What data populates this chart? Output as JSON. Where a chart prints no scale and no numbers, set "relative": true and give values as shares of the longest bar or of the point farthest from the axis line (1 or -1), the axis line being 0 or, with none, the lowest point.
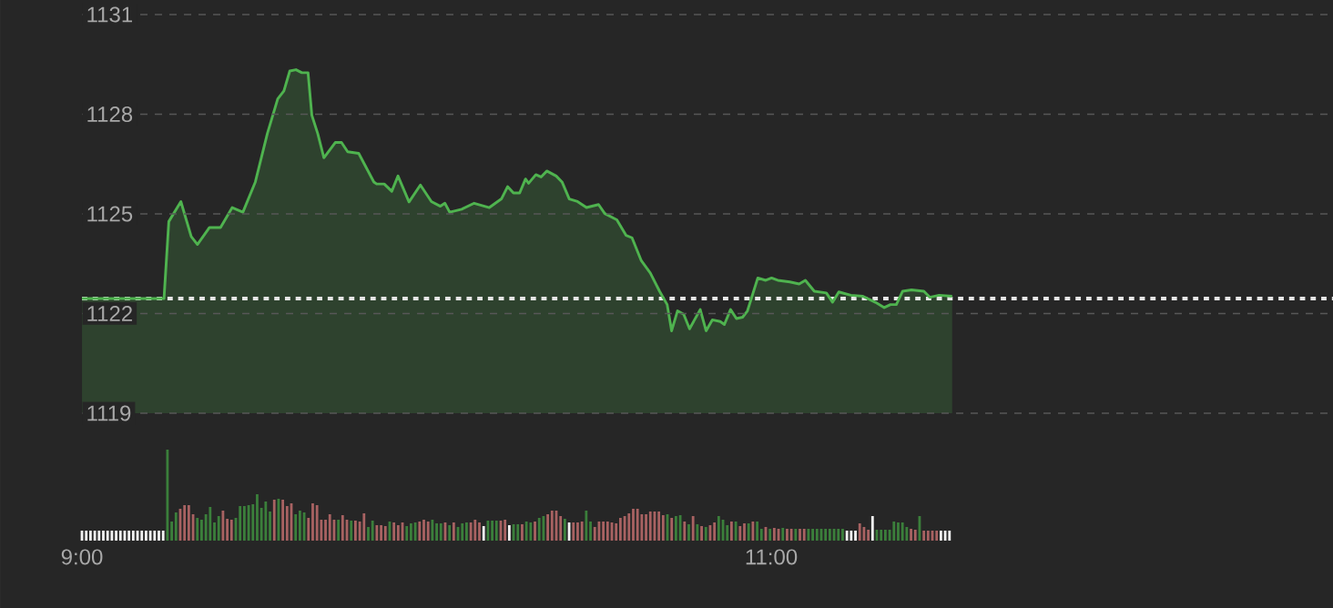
{
  "chart_data": [
    {
      "type": "area",
      "color": "#4fb34f",
      "tick_labels": "y",
      "x": [
        9.0,
        9.238,
        9.252,
        9.287,
        9.317,
        9.335,
        9.37,
        9.402,
        9.436,
        9.467,
        9.503,
        9.538,
        9.568,
        9.586,
        9.603,
        9.621,
        9.638,
        9.656,
        9.667,
        9.684,
        9.702,
        9.735,
        9.753,
        9.771,
        9.803,
        9.847,
        9.855,
        9.877,
        9.899,
        9.917,
        9.949,
        9.982,
        10.014,
        10.04,
        10.053,
        10.067,
        10.102,
        10.138,
        10.182,
        10.217,
        10.235,
        10.252,
        10.27,
        10.287,
        10.296,
        10.317,
        10.332,
        10.349,
        10.376,
        10.393,
        10.414,
        10.438,
        10.464,
        10.499,
        10.517,
        10.552,
        10.579,
        10.596,
        10.623,
        10.649,
        10.676,
        10.698,
        10.711,
        10.728,
        10.746,
        10.763,
        10.794,
        10.811,
        10.829,
        10.852,
        10.864,
        10.882,
        10.899,
        10.917,
        10.931,
        10.961,
        10.984,
        11.001,
        11.019,
        11.054,
        11.081,
        11.099,
        11.125,
        11.16,
        11.178,
        11.196,
        11.231,
        11.266,
        11.302,
        11.328,
        11.346,
        11.363,
        11.381,
        11.407,
        11.443,
        11.46,
        11.487,
        11.525
      ],
      "values": [
        1122.45,
        1122.45,
        1124.77,
        1125.37,
        1124.32,
        1124.08,
        1124.59,
        1124.59,
        1125.19,
        1125.05,
        1125.96,
        1127.42,
        1128.46,
        1128.7,
        1129.3,
        1129.34,
        1129.25,
        1129.25,
        1127.97,
        1127.42,
        1126.69,
        1127.15,
        1127.15,
        1126.87,
        1126.82,
        1125.96,
        1125.9,
        1125.9,
        1125.68,
        1126.14,
        1125.36,
        1125.87,
        1125.37,
        1125.23,
        1125.32,
        1125.05,
        1125.14,
        1125.32,
        1125.19,
        1125.45,
        1125.82,
        1125.63,
        1125.63,
        1126.05,
        1125.92,
        1126.18,
        1126.11,
        1126.29,
        1126.14,
        1125.96,
        1125.45,
        1125.37,
        1125.19,
        1125.28,
        1125.01,
        1124.82,
        1124.35,
        1124.28,
        1123.59,
        1123.22,
        1122.67,
        1122.27,
        1121.48,
        1122.08,
        1121.98,
        1121.54,
        1122.12,
        1121.48,
        1121.81,
        1121.76,
        1121.67,
        1122.12,
        1121.85,
        1121.89,
        1122.08,
        1123.07,
        1123.0,
        1123.07,
        1123.0,
        1122.95,
        1122.89,
        1123.0,
        1122.67,
        1122.62,
        1122.34,
        1122.65,
        1122.55,
        1122.52,
        1122.34,
        1122.18,
        1122.27,
        1122.27,
        1122.67,
        1122.71,
        1122.67,
        1122.49,
        1122.55,
        1122.52
      ],
      "xlim": [
        9,
        12.63
      ],
      "ylim": [
        1119,
        1131
      ],
      "yticks": [
        1119,
        1122,
        1125,
        1128,
        1131
      ],
      "grid": "y",
      "ref_lines": [
        {
          "axis": "y",
          "value": 1122.45,
          "color": "#e6e6e6",
          "line_style": "dotted"
        }
      ]
    },
    {
      "type": "bar",
      "relative": true,
      "tick_labels": "x",
      "xlim": [
        9,
        12.63
      ],
      "xticks": [
        {
          "value": 9,
          "label": "9:00"
        },
        {
          "value": 11,
          "label": "11:00"
        }
      ],
      "x": [
        9.0,
        9.0124,
        9.0248,
        9.0372,
        9.0496,
        9.062,
        9.0744,
        9.0868,
        9.0992,
        9.1116,
        9.124,
        9.1364,
        9.1488,
        9.1612,
        9.1736,
        9.186,
        9.1984,
        9.2108,
        9.2232,
        9.2356,
        9.248,
        9.2604,
        9.2728,
        9.2852,
        9.2976,
        9.31,
        9.3224,
        9.3348,
        9.3472,
        9.3596,
        9.372,
        9.3844,
        9.3968,
        9.4092,
        9.4216,
        9.434,
        9.4464,
        9.4588,
        9.4712,
        9.4836,
        9.496,
        9.5084,
        9.5208,
        9.5332,
        9.5456,
        9.558,
        9.5704,
        9.5828,
        9.5952,
        9.6076,
        9.62,
        9.6324,
        9.6448,
        9.6572,
        9.6696,
        9.682,
        9.6944,
        9.7068,
        9.7192,
        9.7316,
        9.744,
        9.7564,
        9.7688,
        9.7812,
        9.7936,
        9.806,
        9.8184,
        9.8308,
        9.8432,
        9.8556,
        9.868,
        9.8804,
        9.8928,
        9.9052,
        9.9176,
        9.93,
        9.9424,
        9.9548,
        9.9672,
        9.9796,
        9.992,
        10.0044,
        10.0168,
        10.0292,
        10.0416,
        10.054,
        10.0664,
        10.0788,
        10.0912,
        10.1036,
        10.116,
        10.1284,
        10.1408,
        10.1532,
        10.1656,
        10.178,
        10.1904,
        10.2028,
        10.2152,
        10.2276,
        10.24,
        10.2524,
        10.2648,
        10.2772,
        10.2896,
        10.302,
        10.3144,
        10.3268,
        10.3392,
        10.3516,
        10.364,
        10.3764,
        10.3888,
        10.4012,
        10.4136,
        10.426,
        10.4384,
        10.4508,
        10.4632,
        10.4756,
        10.488,
        10.5004,
        10.5128,
        10.5252,
        10.5376,
        10.55,
        10.5624,
        10.5748,
        10.5872,
        10.5996,
        10.612,
        10.6244,
        10.6368,
        10.6492,
        10.6616,
        10.674,
        10.6864,
        10.6988,
        10.7112,
        10.7236,
        10.736,
        10.7484,
        10.7608,
        10.7732,
        10.7856,
        10.798,
        10.8104,
        10.8228,
        10.8352,
        10.8476,
        10.86,
        10.8724,
        10.8848,
        10.8972,
        10.9096,
        10.922,
        10.9344,
        10.9468,
        10.9592,
        10.9716,
        10.984,
        10.9964,
        11.0088,
        11.0212,
        11.0336,
        11.046,
        11.0584,
        11.0708,
        11.0832,
        11.0956,
        11.108,
        11.1204,
        11.1328,
        11.1452,
        11.1576,
        11.17,
        11.1824,
        11.1948,
        11.2072,
        11.2196,
        11.232,
        11.2444,
        11.2568,
        11.2692,
        11.2816,
        11.294,
        11.3064,
        11.3188,
        11.3312,
        11.3436,
        11.356,
        11.3684,
        11.3808,
        11.3932,
        11.4056,
        11.418,
        11.4304,
        11.4428,
        11.4552,
        11.4676,
        11.48,
        11.4924,
        11.5048,
        11.5172
      ],
      "values": [
        0.11,
        0.11,
        0.11,
        0.11,
        0.11,
        0.11,
        0.11,
        0.11,
        0.11,
        0.11,
        0.11,
        0.11,
        0.11,
        0.11,
        0.11,
        0.11,
        0.11,
        0.11,
        0.11,
        0.11,
        1.0,
        0.21,
        0.31,
        0.35,
        0.39,
        0.39,
        0.29,
        0.25,
        0.23,
        0.29,
        0.37,
        0.2,
        0.27,
        0.33,
        0.24,
        0.23,
        0.25,
        0.38,
        0.38,
        0.39,
        0.4,
        0.51,
        0.36,
        0.43,
        0.32,
        0.45,
        0.46,
        0.45,
        0.38,
        0.41,
        0.29,
        0.33,
        0.31,
        0.25,
        0.41,
        0.39,
        0.23,
        0.23,
        0.29,
        0.23,
        0.23,
        0.28,
        0.23,
        0.22,
        0.22,
        0.21,
        0.3,
        0.15,
        0.22,
        0.17,
        0.17,
        0.16,
        0.21,
        0.2,
        0.17,
        0.2,
        0.16,
        0.19,
        0.2,
        0.21,
        0.23,
        0.21,
        0.23,
        0.19,
        0.19,
        0.2,
        0.17,
        0.2,
        0.15,
        0.19,
        0.2,
        0.2,
        0.23,
        0.2,
        0.16,
        0.22,
        0.22,
        0.22,
        0.22,
        0.23,
        0.17,
        0.18,
        0.18,
        0.18,
        0.21,
        0.2,
        0.21,
        0.25,
        0.27,
        0.29,
        0.33,
        0.33,
        0.27,
        0.24,
        0.2,
        0.2,
        0.2,
        0.21,
        0.33,
        0.21,
        0.15,
        0.21,
        0.21,
        0.21,
        0.2,
        0.19,
        0.25,
        0.27,
        0.3,
        0.35,
        0.35,
        0.29,
        0.29,
        0.32,
        0.32,
        0.32,
        0.28,
        0.29,
        0.25,
        0.27,
        0.28,
        0.21,
        0.18,
        0.27,
        0.18,
        0.16,
        0.15,
        0.17,
        0.2,
        0.27,
        0.23,
        0.17,
        0.21,
        0.21,
        0.16,
        0.19,
        0.19,
        0.21,
        0.21,
        0.13,
        0.15,
        0.13,
        0.14,
        0.13,
        0.14,
        0.13,
        0.13,
        0.13,
        0.13,
        0.13,
        0.13,
        0.13,
        0.13,
        0.13,
        0.13,
        0.13,
        0.13,
        0.13,
        0.13,
        0.11,
        0.11,
        0.11,
        0.19,
        0.15,
        0.12,
        0.27,
        0.12,
        0.12,
        0.12,
        0.12,
        0.21,
        0.2,
        0.2,
        0.15,
        0.13,
        0.12,
        0.27,
        0.11,
        0.11,
        0.11,
        0.11,
        0.11,
        0.11,
        0.11
      ],
      "colors": [
        "#f2f2f2",
        "#f2f2f2",
        "#f2f2f2",
        "#f2f2f2",
        "#f2f2f2",
        "#f2f2f2",
        "#f2f2f2",
        "#f2f2f2",
        "#f2f2f2",
        "#f2f2f2",
        "#f2f2f2",
        "#f2f2f2",
        "#f2f2f2",
        "#f2f2f2",
        "#f2f2f2",
        "#f2f2f2",
        "#f2f2f2",
        "#f2f2f2",
        "#f2f2f2",
        "#f2f2f2",
        "#3b7f3b",
        "#3b7f3b",
        "#3b7f3b",
        "#a86262",
        "#a86262",
        "#a86262",
        "#a86262",
        "#3b7f3b",
        "#3b7f3b",
        "#3b7f3b",
        "#3b7f3b",
        "#3b7f3b",
        "#3b7f3b",
        "#a86262",
        "#a86262",
        "#a86262",
        "#3b7f3b",
        "#3b7f3b",
        "#3b7f3b",
        "#3b7f3b",
        "#3b7f3b",
        "#3b7f3b",
        "#3b7f3b",
        "#3b7f3b",
        "#3b7f3b",
        "#a86262",
        "#3b7f3b",
        "#a86262",
        "#a86262",
        "#a86262",
        "#3b7f3b",
        "#3b7f3b",
        "#3b7f3b",
        "#a86262",
        "#a86262",
        "#a86262",
        "#a86262",
        "#a86262",
        "#a86262",
        "#a86262",
        "#3b7f3b",
        "#a86262",
        "#a86262",
        "#3b7f3b",
        "#a86262",
        "#a86262",
        "#a86262",
        "#3b7f3b",
        "#3b7f3b",
        "#a86262",
        "#a86262",
        "#a86262",
        "#3b7f3b",
        "#a86262",
        "#a86262",
        "#a86262",
        "#3b7f3b",
        "#3b7f3b",
        "#3b7f3b",
        "#a86262",
        "#a86262",
        "#a86262",
        "#3b7f3b",
        "#3b7f3b",
        "#3b7f3b",
        "#a86262",
        "#3b7f3b",
        "#a86262",
        "#3b7f3b",
        "#3b7f3b",
        "#3b7f3b",
        "#a86262",
        "#a86262",
        "#a86262",
        "#f2f2f2",
        "#3b7f3b",
        "#3b7f3b",
        "#3b7f3b",
        "#a86262",
        "#a86262",
        "#f2f2f2",
        "#3b7f3b",
        "#3b7f3b",
        "#a86262",
        "#3b7f3b",
        "#3b7f3b",
        "#a86262",
        "#3b7f3b",
        "#3b7f3b",
        "#a86262",
        "#a86262",
        "#a86262",
        "#a86262",
        "#3b7f3b",
        "#f2f2f2",
        "#a86262",
        "#a86262",
        "#a86262",
        "#3b7f3b",
        "#3b7f3b",
        "#a86262",
        "#a86262",
        "#a86262",
        "#a86262",
        "#a86262",
        "#a86262",
        "#a86262",
        "#a86262",
        "#a86262",
        "#a86262",
        "#a86262",
        "#a86262",
        "#a86262",
        "#a86262",
        "#a86262",
        "#a86262",
        "#a86262",
        "#3b7f3b",
        "#a86262",
        "#3b7f3b",
        "#3b7f3b",
        "#a86262",
        "#3b7f3b",
        "#a86262",
        "#3b7f3b",
        "#a86262",
        "#3b7f3b",
        "#a86262",
        "#a86262",
        "#3b7f3b",
        "#3b7f3b",
        "#3b7f3b",
        "#a86262",
        "#3b7f3b",
        "#a86262",
        "#a86262",
        "#3b7f3b",
        "#a86262",
        "#3b7f3b",
        "#3b7f3b",
        "#a86262",
        "#3b7f3b",
        "#a86262",
        "#a86262",
        "#3b7f3b",
        "#a86262",
        "#a86262",
        "#3b7f3b",
        "#a86262",
        "#a86262",
        "#3b7f3b",
        "#3b7f3b",
        "#3b7f3b",
        "#3b7f3b",
        "#3b7f3b",
        "#3b7f3b",
        "#3b7f3b",
        "#3b7f3b",
        "#3b7f3b",
        "#f2f2f2",
        "#f2f2f2",
        "#f2f2f2",
        "#a86262",
        "#a86262",
        "#a86262",
        "#f2f2f2",
        "#3b7f3b",
        "#3b7f3b",
        "#3b7f3b",
        "#3b7f3b",
        "#3b7f3b",
        "#3b7f3b",
        "#3b7f3b",
        "#3b7f3b",
        "#a86262",
        "#a86262",
        "#3b7f3b",
        "#a86262",
        "#a86262",
        "#a86262",
        "#a86262",
        "#f2f2f2",
        "#f2f2f2",
        "#f2f2f2"
      ]
    }
  ]
}
